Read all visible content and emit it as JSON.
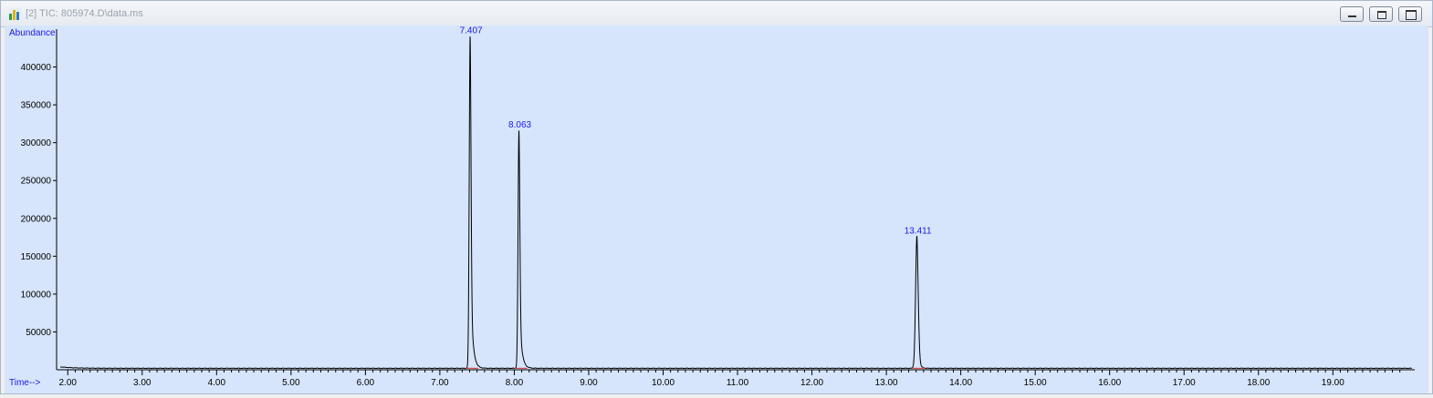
{
  "window": {
    "title": "[2] TIC: 805974.D\\data.ms"
  },
  "colors": {
    "plot_background": "#d6e5fb",
    "trace": "#000000",
    "peak_label": "#1a1ae6",
    "axis_label": "#1a1ae6",
    "baseline_marker": "#d93030"
  },
  "chart_data": {
    "type": "line",
    "title": "",
    "xlabel": "Time-->",
    "ylabel": "Abundance",
    "xlim": [
      1.85,
      20.1
    ],
    "ylim": [
      0,
      450000
    ],
    "x_ticks": [
      "2.00",
      "3.00",
      "4.00",
      "5.00",
      "6.00",
      "7.00",
      "8.00",
      "9.00",
      "10.00",
      "11.00",
      "12.00",
      "13.00",
      "14.00",
      "15.00",
      "16.00",
      "17.00",
      "18.00",
      "19.00"
    ],
    "y_ticks": [
      "50000",
      "100000",
      "150000",
      "200000",
      "250000",
      "300000",
      "350000",
      "400000"
    ],
    "grid": false,
    "legend": "none",
    "baseline_abundance": 2000,
    "peaks": [
      {
        "rt": 7.407,
        "label": "7.407",
        "height": 440000,
        "width": 0.012,
        "tail": 0.03
      },
      {
        "rt": 8.063,
        "label": "8.063",
        "height": 315000,
        "width": 0.012,
        "tail": 0.03
      },
      {
        "rt": 13.411,
        "label": "13.411",
        "height": 175000,
        "width": 0.018,
        "tail": 0.02
      }
    ]
  }
}
